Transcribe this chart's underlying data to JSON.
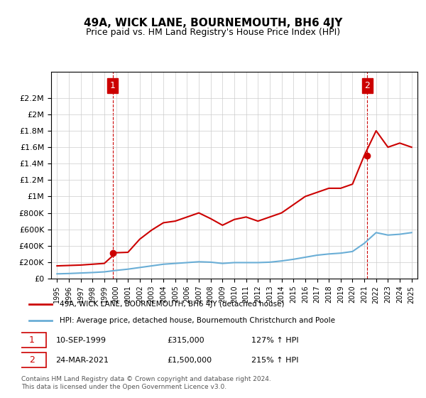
{
  "title": "49A, WICK LANE, BOURNEMOUTH, BH6 4JY",
  "subtitle": "Price paid vs. HM Land Registry's House Price Index (HPI)",
  "legend_line1": "49A, WICK LANE, BOURNEMOUTH, BH6 4JY (detached house)",
  "legend_line2": "HPI: Average price, detached house, Bournemouth Christchurch and Poole",
  "marker1_date": "10-SEP-1999",
  "marker1_price": 315000,
  "marker1_hpi": "127% ↑ HPI",
  "marker2_date": "24-MAR-2021",
  "marker2_price": 1500000,
  "marker2_hpi": "215% ↑ HPI",
  "annotation1_label": "1",
  "annotation2_label": "2",
  "footnote": "Contains HM Land Registry data © Crown copyright and database right 2024.\nThis data is licensed under the Open Government Licence v3.0.",
  "hpi_color": "#6aaed6",
  "price_color": "#cc0000",
  "annotation_color": "#cc0000",
  "ylim": [
    0,
    2400000
  ],
  "yticks": [
    0,
    200000,
    400000,
    600000,
    800000,
    1000000,
    1200000,
    1400000,
    1600000,
    1800000,
    2000000,
    2200000
  ],
  "ytick_labels": [
    "£0",
    "£200K",
    "£400K",
    "£600K",
    "£800K",
    "£1M",
    "£1.2M",
    "£1.4M",
    "£1.6M",
    "£1.8M",
    "£2M",
    "£2.2M"
  ],
  "hpi_years": [
    1995,
    1996,
    1997,
    1998,
    1999,
    2000,
    2001,
    2002,
    2003,
    2004,
    2005,
    2006,
    2007,
    2008,
    2009,
    2010,
    2011,
    2012,
    2013,
    2014,
    2015,
    2016,
    2017,
    2018,
    2019,
    2020,
    2021,
    2022,
    2023,
    2024,
    2025
  ],
  "hpi_values": [
    58000,
    62000,
    68000,
    74000,
    82000,
    100000,
    115000,
    135000,
    155000,
    175000,
    185000,
    195000,
    205000,
    200000,
    185000,
    195000,
    195000,
    195000,
    200000,
    215000,
    235000,
    260000,
    285000,
    300000,
    310000,
    330000,
    430000,
    560000,
    530000,
    540000,
    560000
  ],
  "price_years": [
    1995,
    1996,
    1997,
    1998,
    1999,
    2000,
    2001,
    2002,
    2003,
    2004,
    2005,
    2006,
    2007,
    2008,
    2009,
    2010,
    2011,
    2012,
    2013,
    2014,
    2015,
    2016,
    2017,
    2018,
    2019,
    2020,
    2021,
    2022,
    2023,
    2024,
    2025
  ],
  "price_values": [
    155000,
    160000,
    165000,
    175000,
    185000,
    315000,
    320000,
    480000,
    590000,
    680000,
    700000,
    750000,
    800000,
    730000,
    650000,
    720000,
    750000,
    700000,
    750000,
    800000,
    900000,
    1000000,
    1050000,
    1100000,
    1100000,
    1150000,
    1500000,
    1800000,
    1600000,
    1650000,
    1600000
  ],
  "marker1_x": 1999.7,
  "marker1_y": 315000,
  "marker2_x": 2021.25,
  "marker2_y": 1500000,
  "xtick_years": [
    1995,
    1996,
    1997,
    1998,
    1999,
    2000,
    2001,
    2002,
    2003,
    2004,
    2005,
    2006,
    2007,
    2008,
    2009,
    2010,
    2011,
    2012,
    2013,
    2014,
    2015,
    2016,
    2017,
    2018,
    2019,
    2020,
    2021,
    2022,
    2023,
    2024,
    2025
  ],
  "xlim_min": 1994.5,
  "xlim_max": 2025.5
}
